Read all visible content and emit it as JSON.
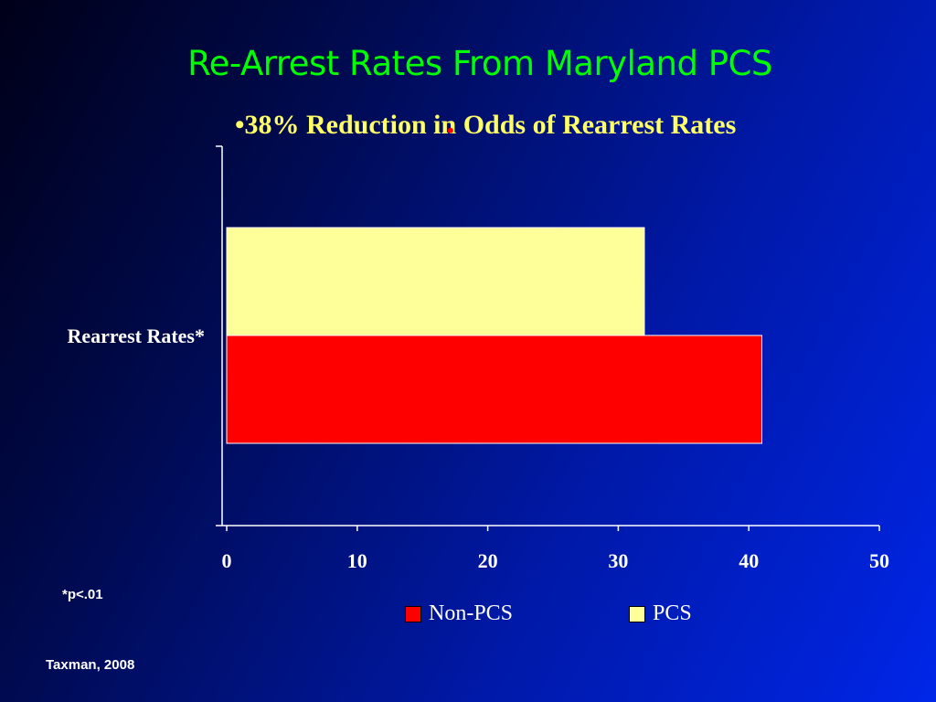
{
  "slide": {
    "title": "Re-Arrest Rates From Maryland PCS",
    "subtitle": "•38% Reduction in Odds of Rearrest Rates",
    "footnote": "*p<.01",
    "source": "Taxman, 2008"
  },
  "chart_data": {
    "type": "bar",
    "orientation": "horizontal",
    "categories": [
      "Rearrest Rates*"
    ],
    "series": [
      {
        "name": "Non-PCS",
        "values": [
          41
        ],
        "color": "#ff0000"
      },
      {
        "name": "PCS",
        "values": [
          32
        ],
        "color": "#ffff99"
      }
    ],
    "xlim": [
      0,
      50
    ],
    "xticks": [
      0,
      10,
      20,
      30,
      40,
      50
    ],
    "grid": false,
    "legend": "bottom"
  },
  "colors": {
    "title": "#00ff00",
    "subtitle": "#ffff66",
    "axis": "#ffffff"
  }
}
